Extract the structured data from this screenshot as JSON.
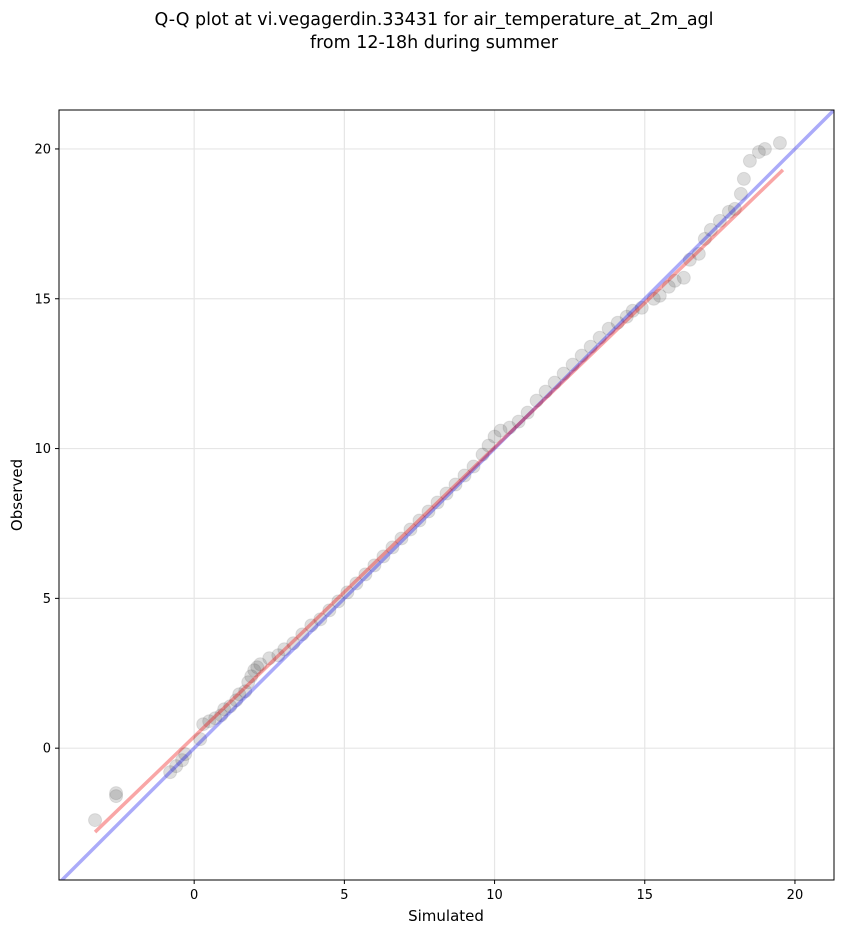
{
  "chart_data": {
    "type": "scatter",
    "title_lines": [
      "Q-Q plot at vi.vegagerdin.33431 for air_temperature_at_2m_agl",
      "from 12-18h during summer"
    ],
    "xlabel": "Simulated",
    "ylabel": "Observed",
    "xlim": [
      -4.5,
      21.3
    ],
    "ylim": [
      -4.4,
      21.3
    ],
    "xticks": [
      0,
      5,
      10,
      15,
      20
    ],
    "yticks": [
      0,
      5,
      10,
      15,
      20
    ],
    "xtick_labels": [
      "0",
      "5",
      "10",
      "15",
      "20"
    ],
    "ytick_labels": [
      "0",
      "5",
      "10",
      "15",
      "20"
    ],
    "grid": true,
    "colors": {
      "points": "#444444",
      "identity_line": "#0000ee",
      "fit_line": "#ee0000",
      "grid": "#e6e6e6"
    },
    "identity_line": {
      "x": [
        -4.5,
        21.3
      ],
      "y": [
        -4.5,
        21.3
      ]
    },
    "fit_line": {
      "x": [
        -3.3,
        19.6
      ],
      "y": [
        -2.8,
        19.3
      ]
    },
    "series": [
      {
        "x": [
          -3.3,
          -2.6,
          -2.6,
          -0.8,
          -0.6,
          -0.4,
          -0.3,
          0.2,
          0.3,
          0.5,
          0.7,
          0.9,
          1.0,
          1.2,
          1.4,
          1.5,
          1.7,
          1.8,
          1.9,
          2.0,
          2.1,
          2.2,
          2.5,
          2.8,
          3.0,
          3.3,
          3.6,
          3.9,
          4.2,
          4.5,
          4.8,
          5.1,
          5.4,
          5.7,
          6.0,
          6.3,
          6.6,
          6.9,
          7.2,
          7.5,
          7.8,
          8.1,
          8.4,
          8.7,
          9.0,
          9.3,
          9.6,
          9.8,
          10.0,
          10.2,
          10.5,
          10.8,
          11.1,
          11.4,
          11.7,
          12.0,
          12.3,
          12.6,
          12.9,
          13.2,
          13.5,
          13.8,
          14.1,
          14.4,
          14.6,
          14.9,
          15.3,
          15.5,
          15.8,
          16.0,
          16.3,
          16.5,
          16.8,
          17.0,
          17.2,
          17.5,
          17.8,
          18.0,
          18.2,
          18.3,
          18.5,
          18.8,
          19.0,
          19.5
        ],
        "y": [
          -2.4,
          -1.6,
          -1.5,
          -0.8,
          -0.6,
          -0.4,
          -0.2,
          0.3,
          0.8,
          0.9,
          1.0,
          1.1,
          1.3,
          1.4,
          1.6,
          1.8,
          1.9,
          2.2,
          2.4,
          2.6,
          2.7,
          2.8,
          3.0,
          3.1,
          3.3,
          3.5,
          3.8,
          4.1,
          4.3,
          4.6,
          4.9,
          5.2,
          5.5,
          5.8,
          6.1,
          6.4,
          6.7,
          7.0,
          7.3,
          7.6,
          7.9,
          8.2,
          8.5,
          8.8,
          9.1,
          9.4,
          9.8,
          10.1,
          10.4,
          10.6,
          10.7,
          10.9,
          11.2,
          11.6,
          11.9,
          12.2,
          12.5,
          12.8,
          13.1,
          13.4,
          13.7,
          14.0,
          14.2,
          14.4,
          14.6,
          14.7,
          15.0,
          15.1,
          15.4,
          15.6,
          15.7,
          16.3,
          16.5,
          17.0,
          17.3,
          17.6,
          17.9,
          18.0,
          18.5,
          19.0,
          19.6,
          19.9,
          20.0,
          20.2
        ]
      }
    ]
  }
}
